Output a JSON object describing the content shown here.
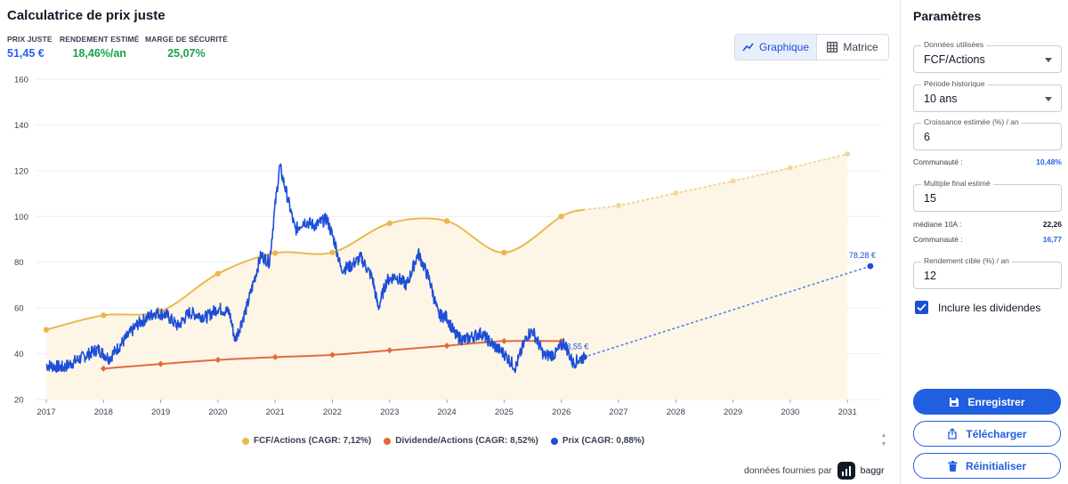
{
  "page": {
    "title": "Calculatrice de prix juste",
    "metrics": [
      {
        "label": "PRIX JUSTE",
        "value": "51,45 €",
        "color": "#2563eb"
      },
      {
        "label": "RENDEMENT ESTIMÉ",
        "value": "18,46%/an",
        "color": "#16a34a"
      },
      {
        "label": "MARGE DE SÉCURITÉ",
        "value": "25,07%",
        "color": "#16a34a"
      }
    ],
    "view_toggle": {
      "graph_label": "Graphique",
      "matrix_label": "Matrice",
      "active": "graph"
    }
  },
  "chart_data": {
    "type": "line",
    "x_axis": {
      "min": 2017,
      "max": 2031.5,
      "ticks": [
        "2017",
        "2018",
        "2019",
        "2020",
        "2021",
        "2022",
        "2023",
        "2024",
        "2025",
        "2026",
        "2027",
        "2028",
        "2029",
        "2030",
        "2031"
      ]
    },
    "y_axis": {
      "min": 20,
      "max": 160,
      "ticks": [
        "20",
        "40",
        "60",
        "80",
        "100",
        "120",
        "140",
        "160"
      ]
    },
    "grid": true,
    "legend_position": "bottom",
    "series": [
      {
        "name": "FCF/Actions (CAGR: 7,12%)",
        "color": "#eab84f",
        "points": [
          [
            2017,
            50.5
          ],
          [
            2018,
            56.8
          ],
          [
            2019,
            58.6
          ],
          [
            2020,
            75.0
          ],
          [
            2021,
            84.0
          ],
          [
            2022,
            84.3
          ],
          [
            2023,
            97.0
          ],
          [
            2024,
            98.0
          ],
          [
            2025,
            84.2
          ],
          [
            2026,
            100.0
          ],
          [
            2026.4,
            103.0
          ]
        ],
        "projection": [
          [
            2026.4,
            103.0
          ],
          [
            2027,
            104.8
          ],
          [
            2028,
            110.2
          ],
          [
            2029,
            115.5
          ],
          [
            2030,
            121.2
          ],
          [
            2031,
            127.3
          ]
        ]
      },
      {
        "name": "Dividende/Actions (CAGR: 8,52%)",
        "color": "#e26a3c",
        "points": [
          [
            2018,
            33.5
          ],
          [
            2019,
            35.5
          ],
          [
            2020,
            37.3
          ],
          [
            2021,
            38.5
          ],
          [
            2022,
            39.5
          ],
          [
            2023,
            41.5
          ],
          [
            2024,
            43.5
          ],
          [
            2025,
            45.5
          ],
          [
            2026,
            45.5
          ]
        ]
      },
      {
        "name": "Prix (CAGR: 0,88%)",
        "color": "#1d4ed8",
        "anchors": [
          [
            2017.0,
            35
          ],
          [
            2017.3,
            34
          ],
          [
            2017.6,
            38
          ],
          [
            2017.9,
            42
          ],
          [
            2018.1,
            38
          ],
          [
            2018.3,
            44
          ],
          [
            2018.6,
            53
          ],
          [
            2018.9,
            58
          ],
          [
            2019.1,
            57
          ],
          [
            2019.3,
            52
          ],
          [
            2019.5,
            58
          ],
          [
            2019.8,
            56
          ],
          [
            2020.0,
            60
          ],
          [
            2020.2,
            58
          ],
          [
            2020.3,
            46
          ],
          [
            2020.5,
            60
          ],
          [
            2020.75,
            83
          ],
          [
            2020.9,
            80
          ],
          [
            2021.0,
            105
          ],
          [
            2021.08,
            122
          ],
          [
            2021.2,
            110
          ],
          [
            2021.35,
            94
          ],
          [
            2021.5,
            98
          ],
          [
            2021.7,
            96
          ],
          [
            2021.9,
            99
          ],
          [
            2022.05,
            88
          ],
          [
            2022.15,
            77
          ],
          [
            2022.3,
            78
          ],
          [
            2022.5,
            82
          ],
          [
            2022.7,
            73
          ],
          [
            2022.8,
            60
          ],
          [
            2022.95,
            72
          ],
          [
            2023.1,
            74
          ],
          [
            2023.3,
            70
          ],
          [
            2023.5,
            84
          ],
          [
            2023.7,
            72
          ],
          [
            2023.85,
            57
          ],
          [
            2024.0,
            56
          ],
          [
            2024.15,
            48
          ],
          [
            2024.3,
            46
          ],
          [
            2024.6,
            49
          ],
          [
            2024.8,
            44
          ],
          [
            2025.0,
            40
          ],
          [
            2025.2,
            34
          ],
          [
            2025.4,
            48
          ],
          [
            2025.5,
            50
          ],
          [
            2025.7,
            39
          ],
          [
            2025.9,
            40
          ],
          [
            2026.05,
            45
          ],
          [
            2026.2,
            36
          ],
          [
            2026.4,
            38.55
          ]
        ],
        "projection": [
          [
            2026.4,
            38.55
          ],
          [
            2031.4,
            78.28
          ]
        ],
        "current_label": "38,55 €",
        "target_label": "78,28 €"
      }
    ]
  },
  "footer": {
    "credit_prefix": "données fournies par",
    "brand": "baggr"
  },
  "panel": {
    "title": "Paramètres",
    "data_used": {
      "label": "Données utilisées",
      "value": "FCF/Actions"
    },
    "period": {
      "label": "Période historique",
      "value": "10 ans"
    },
    "growth": {
      "label": "Croissance estimée (%) / an",
      "value": "6"
    },
    "growth_community": {
      "label": "Communauté :",
      "value": "10,48%"
    },
    "multiple": {
      "label": "Multiple final estimé",
      "value": "15"
    },
    "median": {
      "label": "médiane 10A :",
      "value": "22,26"
    },
    "multiple_community": {
      "label": "Communauté :",
      "value": "16,77"
    },
    "target_yield": {
      "label": "Rendement cible (%) / an",
      "value": "12"
    },
    "dividends_label": "Inclure les dividendes",
    "buttons": {
      "save": "Enregistrer",
      "download": "Télécharger",
      "reset": "Réinitialiser"
    }
  },
  "colors": {
    "accent": "#1f5fe0",
    "price": "#1d4ed8",
    "fcf": "#eab84f",
    "dividend": "#e26a3c",
    "positive": "#16a34a"
  }
}
